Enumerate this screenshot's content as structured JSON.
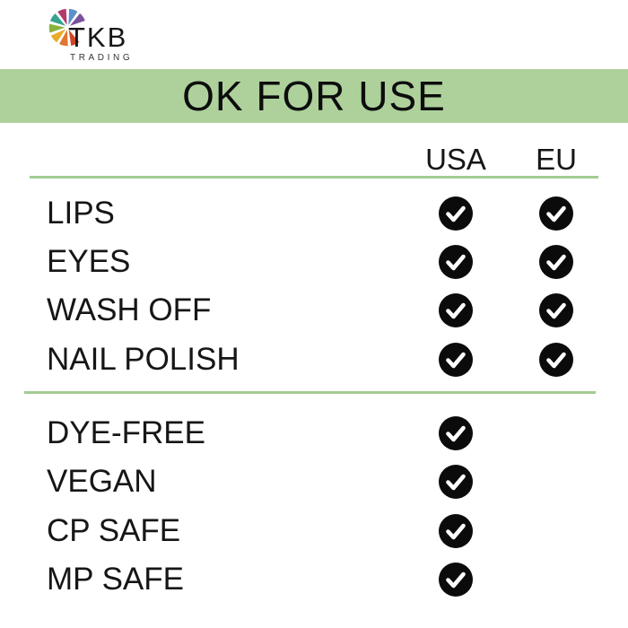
{
  "logo": {
    "name": "TKB",
    "subtitle": "TRADING",
    "wheel_colors": {
      "red": "#cf4727",
      "orange": "#e2762f",
      "yellow": "#eaaa2b",
      "green": "#8ab33c",
      "teal": "#35a38d",
      "magenta": "#b23b6b",
      "blue": "#5c90cd",
      "purple": "#7b519d"
    }
  },
  "banner": {
    "title": "OK FOR USE"
  },
  "table": {
    "columns": [
      "USA",
      "EU"
    ],
    "sections": [
      {
        "name": "approved-uses",
        "rows": [
          {
            "label": "LIPS",
            "usa": true,
            "eu": true
          },
          {
            "label": "EYES",
            "usa": true,
            "eu": true
          },
          {
            "label": "WASH OFF",
            "usa": true,
            "eu": true
          },
          {
            "label": "NAIL POLISH",
            "usa": true,
            "eu": true
          }
        ]
      },
      {
        "name": "attributes",
        "rows": [
          {
            "label": "DYE-FREE",
            "usa": true,
            "eu": false
          },
          {
            "label": "VEGAN",
            "usa": true,
            "eu": false
          },
          {
            "label": "CP SAFE",
            "usa": true,
            "eu": false
          },
          {
            "label": "MP SAFE",
            "usa": true,
            "eu": false
          }
        ]
      }
    ]
  },
  "icons": {
    "check": "check-circle-icon"
  },
  "colors": {
    "banner_green": "#aed19c",
    "divider_green": "#a3cc92",
    "check_circle": "#0b0b0b",
    "check_mark": "#ffffff",
    "text": "#161616",
    "subtitle_gray": "#34343d",
    "background": "#ffffff"
  }
}
